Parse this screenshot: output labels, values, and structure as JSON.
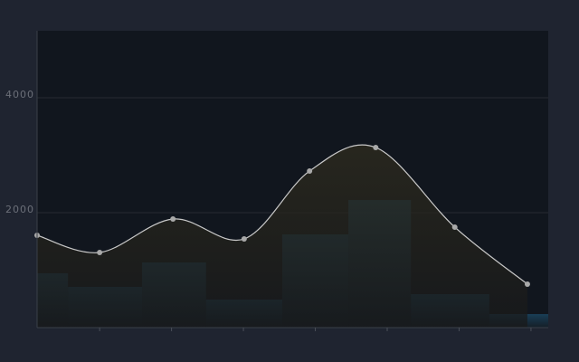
{
  "chart_data": [
    {
      "type": "histogram",
      "bins": [
        -0.87,
        -0.44,
        0.59,
        1.48,
        2.54,
        3.46,
        4.33,
        5.42,
        6.24
      ],
      "values": [
        945,
        709,
        1134,
        488,
        1622,
        2220,
        583,
        236
      ],
      "color": "#1b4560",
      "xlim": [
        -0.87,
        6.24
      ],
      "xticks": [
        0,
        1,
        2,
        3,
        4,
        5,
        6
      ],
      "ylim": [
        0,
        5165
      ],
      "yticks": [
        2000,
        4000
      ],
      "grid": true
    },
    {
      "type": "line",
      "x": [
        -0.87,
        0,
        1.02,
        2.01,
        2.92,
        3.84,
        4.94,
        5.95
      ],
      "values": [
        1606,
        1307,
        1890,
        1543,
        2724,
        3134,
        1748,
        756
      ],
      "color": "#c8c8c8"
    }
  ]
}
